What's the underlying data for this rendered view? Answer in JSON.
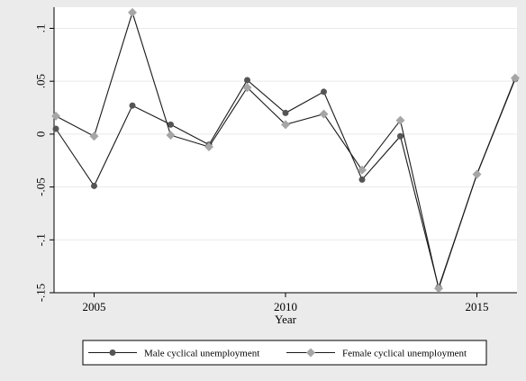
{
  "chart_data": {
    "type": "line",
    "xlabel": "Year",
    "ylabel": "",
    "xlim": [
      2004,
      2016
    ],
    "ylim": [
      -0.15,
      0.12
    ],
    "x": [
      2004,
      2005,
      2006,
      2007,
      2008,
      2009,
      2010,
      2011,
      2012,
      2013,
      2014,
      2015,
      2016
    ],
    "x_ticks": [
      {
        "value": 2005,
        "label": "2005"
      },
      {
        "value": 2010,
        "label": "2010"
      },
      {
        "value": 2015,
        "label": "2015"
      }
    ],
    "y_ticks": [
      {
        "value": 0.1,
        "label": ".1"
      },
      {
        "value": 0.05,
        "label": ".05"
      },
      {
        "value": 0,
        "label": "0"
      },
      {
        "value": -0.05,
        "label": "-.05"
      },
      {
        "value": -0.1,
        "label": "-.1"
      },
      {
        "value": -0.15,
        "label": "-.15"
      }
    ],
    "grid": true,
    "legend_position": "bottom",
    "series": [
      {
        "name": "Male cyclical unemployment",
        "color": "#555555",
        "marker": "circle",
        "values": [
          0.005,
          -0.049,
          0.027,
          0.009,
          -0.01,
          0.051,
          0.02,
          0.04,
          -0.043,
          -0.002,
          -0.145,
          -0.038,
          0.052
        ]
      },
      {
        "name": "Female cyclical unemployment",
        "color": "#a6a6a6",
        "marker": "diamond",
        "values": [
          0.017,
          -0.002,
          0.115,
          -0.001,
          -0.012,
          0.044,
          0.009,
          0.019,
          -0.034,
          0.013,
          -0.146,
          -0.038,
          0.053
        ]
      }
    ]
  }
}
